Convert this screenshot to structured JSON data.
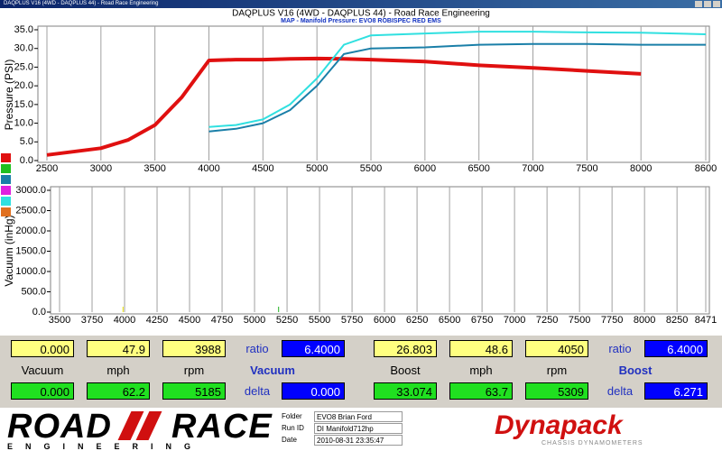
{
  "window": {
    "title": "DAQPLUS V16 (4WD - DAQPLUS 44) - Road Race Engineering"
  },
  "chart_data": [
    {
      "type": "line",
      "title": "DAQPLUS V16 (4WD - DAQPLUS 44) - Road Race Engineering",
      "subtitle": "MAP - Manifold Pressure: EVO8 ROBISPEC RED EMS",
      "y_label": "Pressure (PSI)",
      "x": [
        2500,
        3000,
        3250,
        3500,
        3750,
        4000,
        4250,
        4500,
        4750,
        5000,
        5250,
        5500,
        6000,
        6500,
        7000,
        7500,
        8000,
        8600
      ],
      "series": [
        {
          "color": "#e01010",
          "width": 4,
          "values": [
            1.5,
            3.3,
            5.5,
            9.5,
            17,
            26.8,
            27,
            27,
            27.2,
            27.3,
            27.2,
            27,
            26.5,
            25.5,
            24.8,
            24,
            23.2,
            null
          ]
        },
        {
          "color": "#1a7fa8",
          "width": 2,
          "values": [
            null,
            null,
            null,
            null,
            null,
            7.8,
            8.5,
            10,
            13.5,
            20,
            28.5,
            30,
            30.3,
            31,
            31.2,
            31.2,
            31,
            31
          ]
        },
        {
          "color": "#30e0e0",
          "width": 2,
          "values": [
            null,
            null,
            null,
            null,
            null,
            9,
            9.5,
            11,
            15,
            22,
            31,
            33.5,
            34,
            34.5,
            34.5,
            34.3,
            34.2,
            33.8
          ]
        }
      ],
      "xlim": [
        2500,
        8600
      ],
      "xticks": [
        2500,
        3000,
        3500,
        4000,
        4500,
        5000,
        5500,
        6000,
        6500,
        7000,
        7500,
        8000,
        8600
      ],
      "ylim": [
        0,
        35
      ],
      "yticks": [
        {
          "value": 0,
          "label": "0.0"
        },
        {
          "value": 5,
          "label": "5.0"
        },
        {
          "value": 10,
          "label": "10.0"
        },
        {
          "value": 15,
          "label": "15.0"
        },
        {
          "value": 20,
          "label": "20.0"
        },
        {
          "value": 25,
          "label": "25.0"
        },
        {
          "value": 30,
          "label": "30.0"
        },
        {
          "value": 35,
          "label": "35.0"
        }
      ],
      "grid": "x"
    },
    {
      "type": "line",
      "y_label": "Vacuum (inHg)",
      "series": [],
      "cursors": [
        {
          "x": 3988,
          "color": "#e8e000"
        },
        {
          "x": 5185,
          "color": "#20b020"
        }
      ],
      "xlim": [
        3500,
        8471
      ],
      "xticks": [
        3500,
        3750,
        4000,
        4250,
        4500,
        4750,
        5000,
        5250,
        5500,
        5750,
        6000,
        6250,
        6500,
        6750,
        7000,
        7250,
        7500,
        7750,
        8000,
        8250,
        8471
      ],
      "ylim": [
        0,
        3000
      ],
      "yticks": [
        {
          "value": 0,
          "label": "0.0"
        },
        {
          "value": 500,
          "label": "500.0"
        },
        {
          "value": 1000,
          "label": "1000.0"
        },
        {
          "value": 1500,
          "label": "1500.0"
        },
        {
          "value": 2000,
          "label": "2000.0"
        },
        {
          "value": 2500,
          "label": "2500.0"
        },
        {
          "value": 3000,
          "label": "3000.0"
        }
      ],
      "grid": "x"
    }
  ],
  "panel": {
    "left": {
      "top": [
        "0.000",
        "47.9",
        "3988"
      ],
      "ratio_label": "ratio",
      "ratio": "6.4000",
      "labels": [
        "Vacuum",
        "mph",
        "rpm"
      ],
      "title": "Vacuum",
      "bottom": [
        "0.000",
        "62.2",
        "5185"
      ],
      "delta_label": "delta",
      "delta": "0.000"
    },
    "right": {
      "top": [
        "26.803",
        "48.6",
        "4050"
      ],
      "ratio_label": "ratio",
      "ratio": "6.4000",
      "labels": [
        "Boost",
        "mph",
        "rpm"
      ],
      "title": "Boost",
      "bottom": [
        "33.074",
        "63.7",
        "5309"
      ],
      "delta_label": "delta",
      "delta": "6.271"
    }
  },
  "footer": {
    "logo": {
      "left": "ROAD",
      "right": "RACE",
      "sub": "ENGINEERING"
    },
    "info": [
      {
        "label": "Folder",
        "value": "EVO8 Brian Ford"
      },
      {
        "label": "Run ID",
        "value": "DI Manifold712hp"
      },
      {
        "label": "Date",
        "value": "2010-08-31 23:35:47"
      }
    ],
    "brand": "Dynapack",
    "brand_sub": "CHASSIS DYNAMOMETERS"
  }
}
